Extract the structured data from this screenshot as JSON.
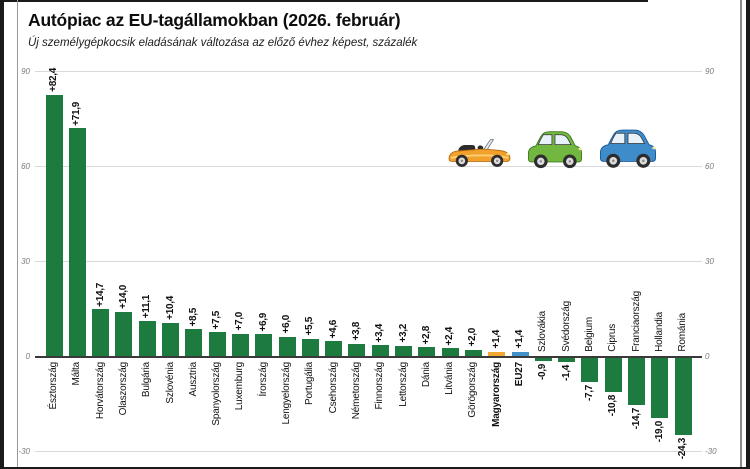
{
  "chart_data": {
    "type": "bar",
    "title": "Autópiac az EU-tagállamokban (2026. február)",
    "subtitle": "Új személygépkocsik eladásának változása az előző évhez képest, százalék",
    "categories": [
      "Észtország",
      "Málta",
      "Horvátország",
      "Olaszország",
      "Bulgária",
      "Szlovénia",
      "Ausztria",
      "Spanyolország",
      "Luxemburg",
      "Írország",
      "Lengyelország",
      "Portugália",
      "Csehország",
      "Németország",
      "Finnország",
      "Lettország",
      "Dánia",
      "Litvánia",
      "Görögország",
      "Magyarország",
      "EU27",
      "Szlovákia",
      "Svédország",
      "Belgium",
      "Ciprus",
      "Franciaország",
      "Hollandia",
      "Románia"
    ],
    "values": [
      82.4,
      71.9,
      14.7,
      14.0,
      11.1,
      10.4,
      8.5,
      7.5,
      7.0,
      6.9,
      6.0,
      5.5,
      4.6,
      3.8,
      3.4,
      3.2,
      2.8,
      2.4,
      2.0,
      1.4,
      1.4,
      -0.9,
      -1.4,
      -7.7,
      -10.8,
      -14.7,
      -19.0,
      -24.3
    ],
    "value_labels": [
      "+82,4",
      "+71,9",
      "+14,7",
      "+14,0",
      "+11,1",
      "+10,4",
      "+8,5",
      "+7,5",
      "+7,0",
      "+6,9",
      "+6,0",
      "+5,5",
      "+4,6",
      "+3,8",
      "+3,4",
      "+3,2",
      "+2,8",
      "+2,4",
      "+2,0",
      "+1,4",
      "+1,4",
      "-0,9",
      "-1,4",
      "-7,7",
      "-10,8",
      "-14,7",
      "-19,0",
      "-24,3"
    ],
    "emphasized_categories": [
      "Magyarország",
      "EU27"
    ],
    "bar_color_overrides": {
      "Magyarország": "#f0a62f",
      "EU27": "#4190cc"
    },
    "colors": {
      "bar_default": "#1e7b40",
      "grid": "#d9d9d9",
      "axis": "#3a3a3a"
    },
    "ylim": [
      -30,
      90
    ],
    "yticks": [
      "90",
      "60",
      "30",
      "0",
      "-30"
    ],
    "grid": true,
    "y_axis_sides": "both",
    "legend": "none"
  },
  "decorations": {
    "cars": [
      {
        "name": "orange-convertible-car",
        "color": "#f2a12d"
      },
      {
        "name": "green-car",
        "color": "#72b840"
      },
      {
        "name": "blue-car",
        "color": "#3f8ccb"
      }
    ]
  }
}
